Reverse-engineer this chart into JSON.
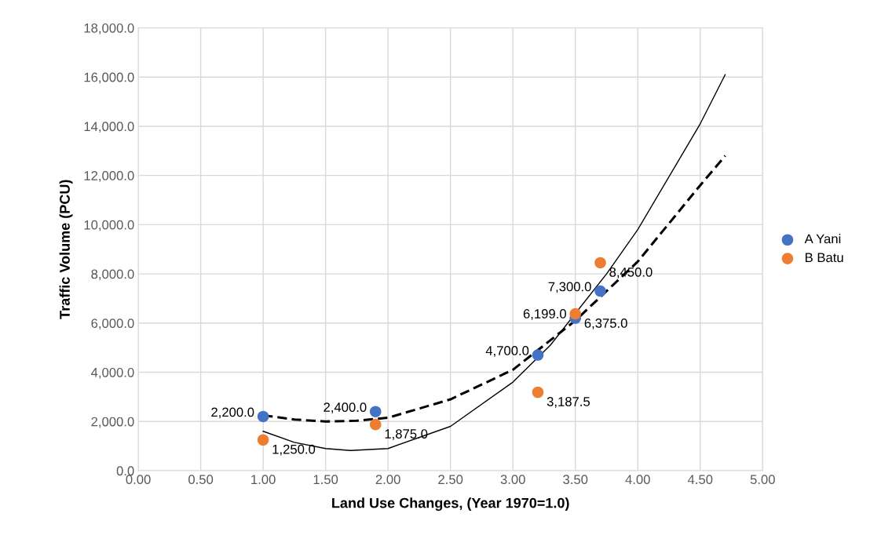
{
  "chart_data": {
    "type": "scatter",
    "xlabel": "Land Use Changes, (Year 1970=1.0)",
    "ylabel": "Traffic Volume (PCU)",
    "xlim": [
      0,
      5
    ],
    "ylim": [
      0,
      18000
    ],
    "xticks": [
      {
        "value": 0,
        "label": "0.00"
      },
      {
        "value": 0.5,
        "label": "0.50"
      },
      {
        "value": 1,
        "label": "1.00"
      },
      {
        "value": 1.5,
        "label": "1.50"
      },
      {
        "value": 2,
        "label": "2.00"
      },
      {
        "value": 2.5,
        "label": "2.50"
      },
      {
        "value": 3,
        "label": "3.00"
      },
      {
        "value": 3.5,
        "label": "3.50"
      },
      {
        "value": 4,
        "label": "4.00"
      },
      {
        "value": 4.5,
        "label": "4.50"
      },
      {
        "value": 5,
        "label": "5.00"
      }
    ],
    "yticks": [
      {
        "value": 0,
        "label": "0.0"
      },
      {
        "value": 2000,
        "label": "2,000.0"
      },
      {
        "value": 4000,
        "label": "4,000.0"
      },
      {
        "value": 6000,
        "label": "6,000.0"
      },
      {
        "value": 8000,
        "label": "8,000.0"
      },
      {
        "value": 10000,
        "label": "10,000.0"
      },
      {
        "value": 12000,
        "label": "12,000.0"
      },
      {
        "value": 14000,
        "label": "14,000.0"
      },
      {
        "value": 16000,
        "label": "16,000.0"
      },
      {
        "value": 18000,
        "label": "18,000.0"
      }
    ],
    "grid": true,
    "legend": "right",
    "marker": "circle",
    "series": [
      {
        "name": "A Yani",
        "color": "#4472c4",
        "x": [
          1.0,
          1.9,
          3.2,
          3.5,
          3.7
        ],
        "values": [
          2200,
          2400,
          4700,
          6199,
          7300
        ],
        "value_labels": [
          "2,200.0",
          "2,400.0",
          "4,700.0",
          "6,199.0",
          "7,300.0"
        ]
      },
      {
        "name": "B Batu",
        "color": "#ed7d31",
        "x": [
          1.0,
          1.9,
          3.2,
          3.5,
          3.7
        ],
        "values": [
          1250,
          1875,
          3187.5,
          6375,
          8450
        ],
        "value_labels": [
          "1,250.0",
          "1,875.0",
          "3,187.5",
          "6,375.0",
          "8,450.0"
        ]
      },
      {
        "type": "line",
        "color": "#000000",
        "line_style": "dashed",
        "marker": "none",
        "x": [
          1.0,
          1.25,
          1.5,
          1.75,
          2.0,
          2.5,
          3.0,
          3.5,
          4.0,
          4.5,
          4.7
        ],
        "values": [
          2250,
          2080,
          2000,
          2030,
          2150,
          2900,
          4100,
          6100,
          8500,
          11600,
          12800
        ]
      },
      {
        "type": "line",
        "color": "#000000",
        "line_style": "solid",
        "marker": "none",
        "x": [
          1.0,
          1.25,
          1.5,
          1.7,
          2.0,
          2.5,
          3.0,
          3.3,
          3.75,
          4.0,
          4.5,
          4.7
        ],
        "values": [
          1600,
          1150,
          900,
          820,
          900,
          1800,
          3600,
          5100,
          8000,
          9800,
          14100,
          16100
        ]
      }
    ]
  }
}
